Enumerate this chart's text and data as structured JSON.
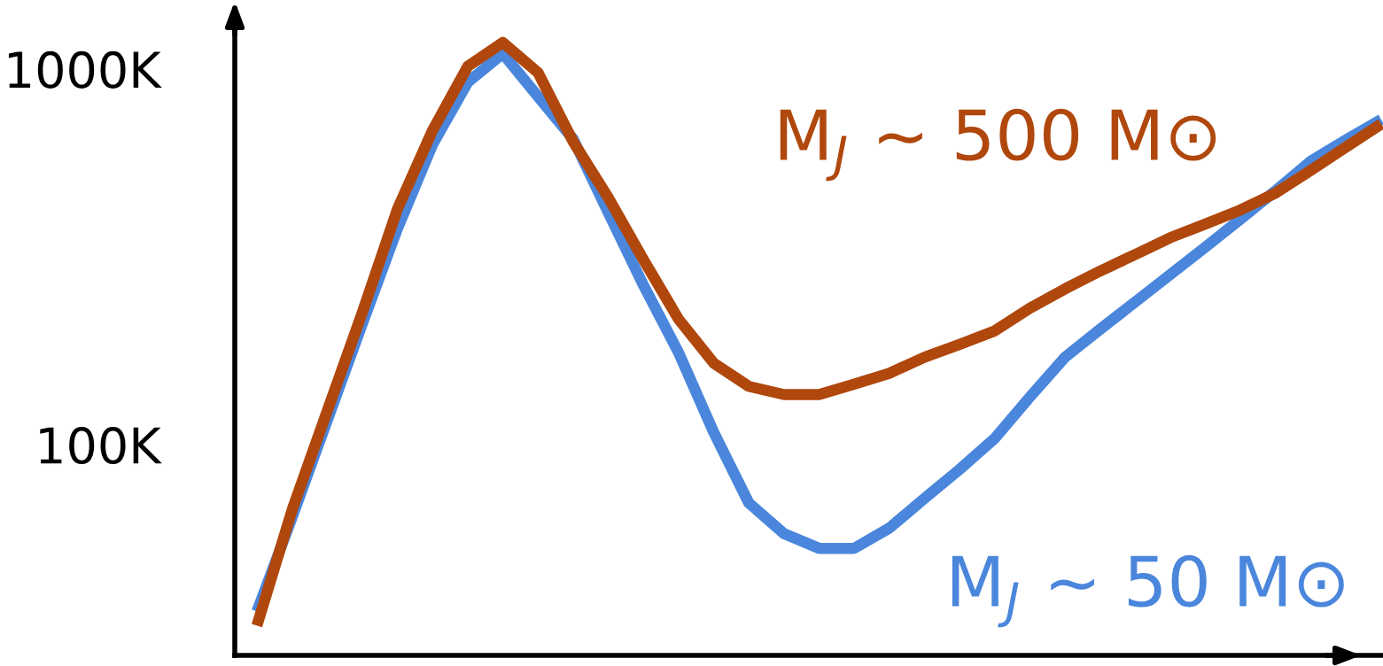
{
  "chart_data": {
    "type": "line",
    "categories": [
      null,
      null,
      null,
      null,
      null,
      null,
      null,
      null,
      null,
      null,
      null,
      null,
      null,
      null,
      null,
      null,
      null,
      null,
      null,
      null,
      null,
      null,
      null,
      null,
      null,
      null,
      null,
      null,
      null,
      null,
      null,
      null,
      null
    ],
    "series": [
      {
        "name": "M$_{J}$ ~ 50 M⊙",
        "color": "#4a86dc",
        "values": [
          36,
          64,
          116,
          210,
          376,
          630,
          922,
          1100,
          845,
          651,
          415,
          266,
          176,
          108,
          70,
          58,
          53,
          53,
          60,
          72,
          86,
          104,
          134,
          171,
          203,
          240,
          284,
          336,
          399,
          475,
          569,
          648,
          734
        ]
      },
      {
        "name": "M$_{J}$ ~ 500 M⊙",
        "color": "#b0470c",
        "values": [
          33,
          67,
          123,
          225,
          424,
          687,
          1017,
          1177,
          979,
          641,
          455,
          311,
          216,
          165,
          143,
          136,
          136,
          145,
          155,
          171,
          185,
          201,
          231,
          260,
          290,
          321,
          356,
          387,
          422,
          468,
          538,
          620,
          714
        ]
      }
    ],
    "log": true,
    "ylim": [
      27.5,
      1370
    ],
    "yticks": [
      {
        "value": 100,
        "label": "100K"
      },
      {
        "value": 1000,
        "label": "1000K"
      }
    ],
    "grid": false,
    "legend": false,
    "marker": "none",
    "line_style": "solid"
  }
}
